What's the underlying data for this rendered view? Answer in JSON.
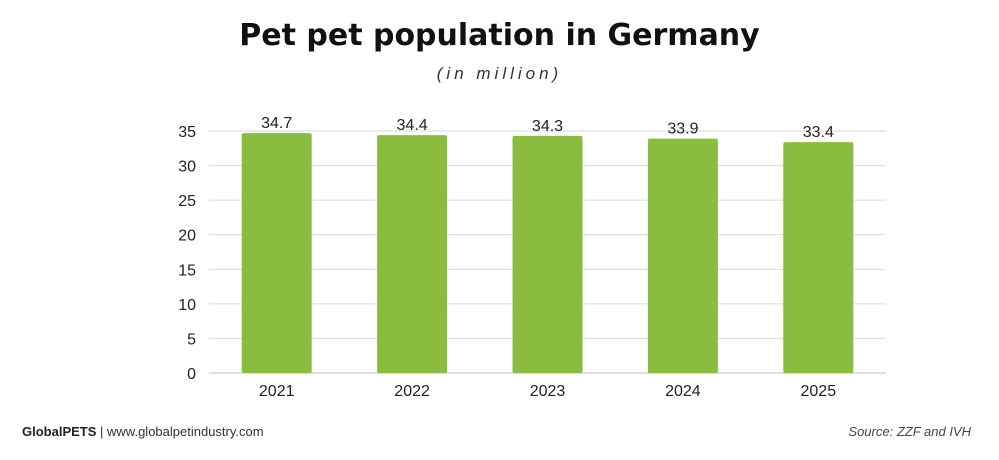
{
  "chart_data": {
    "type": "bar",
    "title": "Pet pet population in Germany",
    "subtitle": "(in million)",
    "categories": [
      "2021",
      "2022",
      "2023",
      "2024",
      "2025"
    ],
    "values": [
      34.7,
      34.4,
      34.3,
      33.9,
      33.4
    ],
    "data_labels": [
      "34.7",
      "34.4",
      "34.3",
      "33.9",
      "33.4"
    ],
    "yticks": [
      "0",
      "5",
      "10",
      "15",
      "20",
      "25",
      "30",
      "35"
    ],
    "ylim": [
      0,
      35
    ],
    "grid": true,
    "legend": "none",
    "bar_color": "#8abd3f"
  },
  "footer": {
    "brand": "GlobalPETS",
    "separator": " | ",
    "website": "www.globalpetindustry.com",
    "source": "Source: ZZF and IVH"
  }
}
